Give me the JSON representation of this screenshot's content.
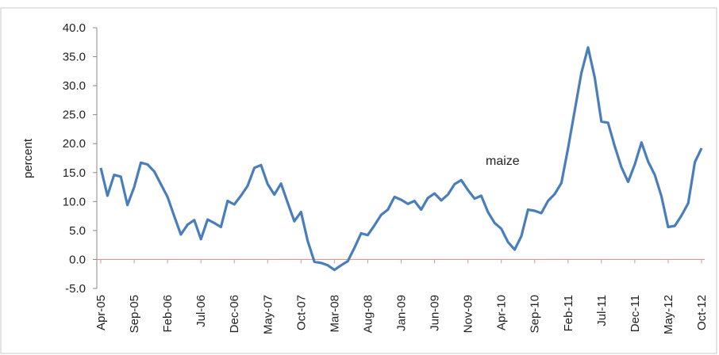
{
  "chart_data": {
    "type": "line",
    "ylabel": "percent",
    "annotation": "maize",
    "categories": [
      "Apr-05",
      null,
      null,
      null,
      null,
      "Sep-05",
      null,
      null,
      null,
      null,
      "Feb-06",
      null,
      null,
      null,
      null,
      "Jul-06",
      null,
      null,
      null,
      null,
      "Dec-06",
      null,
      null,
      null,
      null,
      "May-07",
      null,
      null,
      null,
      null,
      "Oct-07",
      null,
      null,
      null,
      null,
      "Mar-08",
      null,
      null,
      null,
      null,
      "Aug-08",
      null,
      null,
      null,
      null,
      "Jan-09",
      null,
      null,
      null,
      null,
      "Jun-09",
      null,
      null,
      null,
      null,
      "Nov-09",
      null,
      null,
      null,
      null,
      "Apr-10",
      null,
      null,
      null,
      null,
      "Sep-10",
      null,
      null,
      null,
      null,
      "Feb-11",
      null,
      null,
      null,
      null,
      "Jul-11",
      null,
      null,
      null,
      null,
      "Dec-11",
      null,
      null,
      null,
      null,
      "May-12",
      null,
      null,
      null,
      null,
      "Oct-12"
    ],
    "series": [
      {
        "name": "maize",
        "color": "#4a7ebb",
        "values": [
          15.8,
          11.0,
          14.6,
          14.3,
          9.4,
          12.5,
          16.7,
          16.4,
          15.2,
          13.0,
          10.8,
          7.5,
          4.3,
          6.0,
          6.8,
          3.5,
          6.9,
          6.3,
          5.6,
          10.1,
          9.5,
          11.0,
          12.7,
          15.8,
          16.3,
          13.0,
          11.2,
          13.1,
          9.8,
          6.6,
          8.2,
          3.2,
          -0.4,
          -0.6,
          -1.0,
          -1.8,
          -1.0,
          -0.3,
          2.0,
          4.5,
          4.2,
          5.9,
          7.7,
          8.6,
          10.8,
          10.3,
          9.6,
          10.1,
          8.6,
          10.6,
          11.4,
          10.2,
          11.2,
          13.0,
          13.7,
          12.0,
          10.5,
          11.0,
          8.2,
          6.3,
          5.3,
          3.0,
          1.7,
          4.0,
          8.6,
          8.4,
          8.0,
          10.1,
          11.3,
          13.2,
          19.2,
          25.7,
          32.2,
          36.6,
          31.4,
          23.8,
          23.6,
          19.5,
          15.9,
          13.4,
          16.4,
          20.2,
          16.9,
          14.6,
          10.9,
          5.6,
          5.8,
          7.6,
          9.7,
          16.8,
          19.2
        ]
      }
    ],
    "ylim": [
      -5,
      40
    ],
    "yticks": [
      {
        "value": -5,
        "label": "-5.0"
      },
      {
        "value": 0,
        "label": "0.0"
      },
      {
        "value": 5,
        "label": "5.0"
      },
      {
        "value": 10,
        "label": "10.0"
      },
      {
        "value": 15,
        "label": "15.0"
      },
      {
        "value": 20,
        "label": "20.0"
      },
      {
        "value": 25,
        "label": "25.0"
      },
      {
        "value": 30,
        "label": "30.0"
      },
      {
        "value": 35,
        "label": "35.0"
      },
      {
        "value": 40,
        "label": "40.0"
      }
    ],
    "grid": false
  }
}
